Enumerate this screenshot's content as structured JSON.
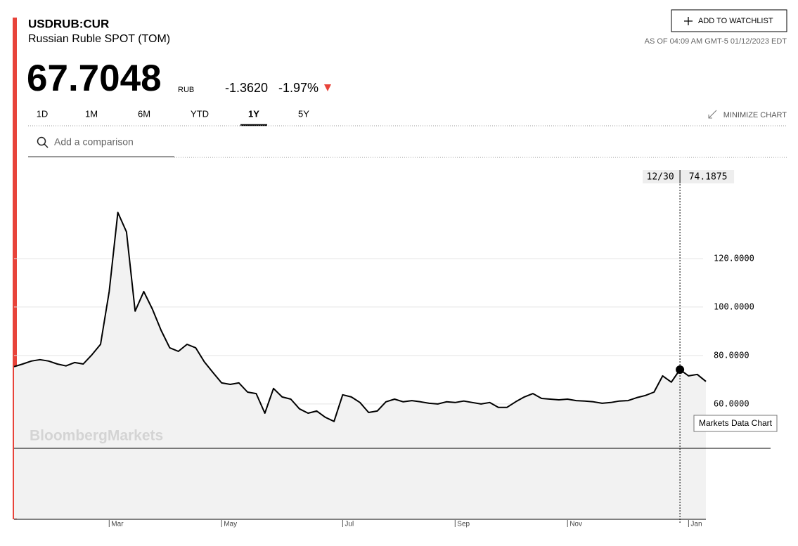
{
  "header": {
    "symbol": "USDRUB:CUR",
    "name": "Russian Ruble SPOT (TOM)"
  },
  "quote": {
    "price": "67.7048",
    "currency": "RUB",
    "change": "-1.3620",
    "change_pct": "-1.97%",
    "as_of": "AS OF 04:09 AM GMT-5 01/12/2023 EDT"
  },
  "actions": {
    "watchlist": "ADD TO WATCHLIST",
    "minimize": "MINIMIZE CHART",
    "comparison_placeholder": "Add a comparison"
  },
  "tabs": [
    {
      "label": "1D"
    },
    {
      "label": "1M"
    },
    {
      "label": "6M"
    },
    {
      "label": "YTD"
    },
    {
      "label": "1Y",
      "selected": true
    },
    {
      "label": "5Y"
    }
  ],
  "watermark": "BloombergMarkets",
  "chart_label": "Markets Data Chart",
  "chart_data": {
    "type": "line",
    "categories": [
      null,
      null,
      null,
      null,
      null,
      null,
      null,
      null,
      null,
      null,
      null,
      "Mar",
      null,
      null,
      null,
      null,
      null,
      null,
      null,
      null,
      null,
      null,
      null,
      null,
      "May",
      null,
      null,
      null,
      null,
      null,
      null,
      null,
      null,
      null,
      null,
      null,
      null,
      null,
      "Jul",
      null,
      null,
      null,
      null,
      null,
      null,
      null,
      null,
      null,
      null,
      null,
      null,
      "Sep",
      null,
      null,
      null,
      null,
      null,
      null,
      null,
      null,
      null,
      null,
      null,
      null,
      "Nov",
      null,
      null,
      null,
      null,
      null,
      null,
      null,
      null,
      null,
      null,
      null,
      null,
      null,
      "Jan",
      null,
      null
    ],
    "series": [
      {
        "name": "USDRUB",
        "color": "#000000",
        "values": [
          75.4,
          76.5,
          77.7,
          78.3,
          77.7,
          76.5,
          75.7,
          77.1,
          76.5,
          80.3,
          84.6,
          106.4,
          139,
          131,
          98.3,
          106.4,
          99.1,
          90.4,
          83.2,
          81.7,
          84.6,
          83.2,
          77.4,
          73,
          68.7,
          68.1,
          68.7,
          64.9,
          64.3,
          56.2,
          66.4,
          62.9,
          62,
          58,
          56.2,
          57.1,
          54.5,
          52.8,
          63.8,
          62.9,
          60.6,
          56.5,
          57.1,
          60.9,
          62,
          60.9,
          61.4,
          60.9,
          60.3,
          60,
          60.9,
          60.6,
          61.2,
          60.6,
          60,
          60.6,
          58.6,
          58.6,
          60.9,
          62.9,
          64.3,
          62.3,
          62,
          61.7,
          62,
          61.4,
          61.2,
          60.9,
          60.3,
          60.6,
          61.2,
          61.4,
          62.6,
          63.5,
          64.9,
          71.6,
          69,
          74.1875,
          71.6,
          72.2,
          69.3
        ]
      }
    ],
    "ylim": [
      41.7,
      160
    ],
    "yticks": [
      {
        "value": 60,
        "label": "60.0000"
      },
      {
        "value": 80,
        "label": "80.0000"
      },
      {
        "value": 100,
        "label": "100.0000"
      },
      {
        "value": 120,
        "label": "120.0000"
      }
    ],
    "grid": true,
    "hover": {
      "label": "12/30",
      "value": 74.1875
    }
  }
}
